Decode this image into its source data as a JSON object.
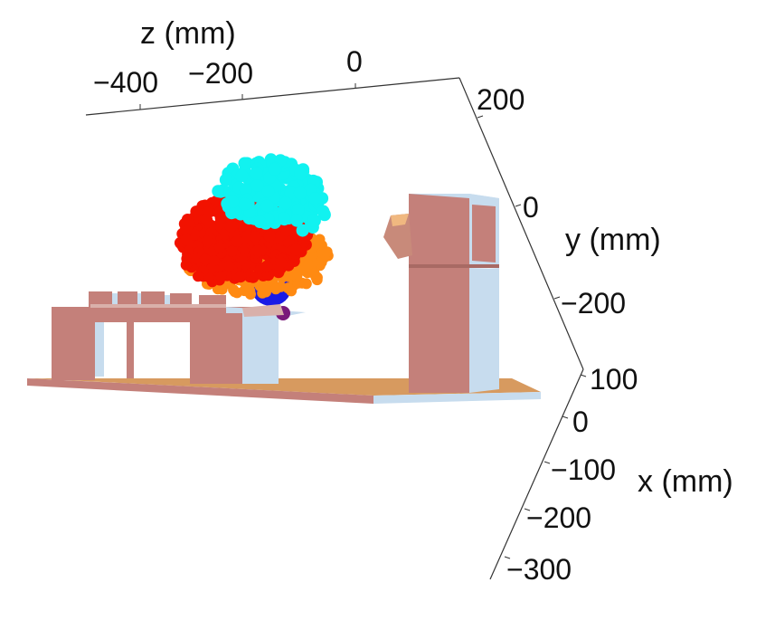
{
  "axes": {
    "z": {
      "title": "z (mm)",
      "ticks": [
        "−400",
        "−200",
        "0"
      ]
    },
    "y": {
      "title": "y (mm)",
      "ticks": [
        "200",
        "0",
        "−200"
      ]
    },
    "x": {
      "title": "x (mm)",
      "ticks": [
        "100",
        "0",
        "−100",
        "−200",
        "−300"
      ]
    }
  },
  "colors": {
    "structure": "#c4807a",
    "structure_side": "#c7dcee",
    "floor": "#d79a5f",
    "cloud_cyan": "#11f2f0",
    "cloud_red": "#f21200",
    "cloud_orange": "#ff8a12",
    "hand_blue": "#1a1ae6",
    "hand_yellow": "#f5f55a",
    "hand_purple": "#7a1a7a"
  }
}
